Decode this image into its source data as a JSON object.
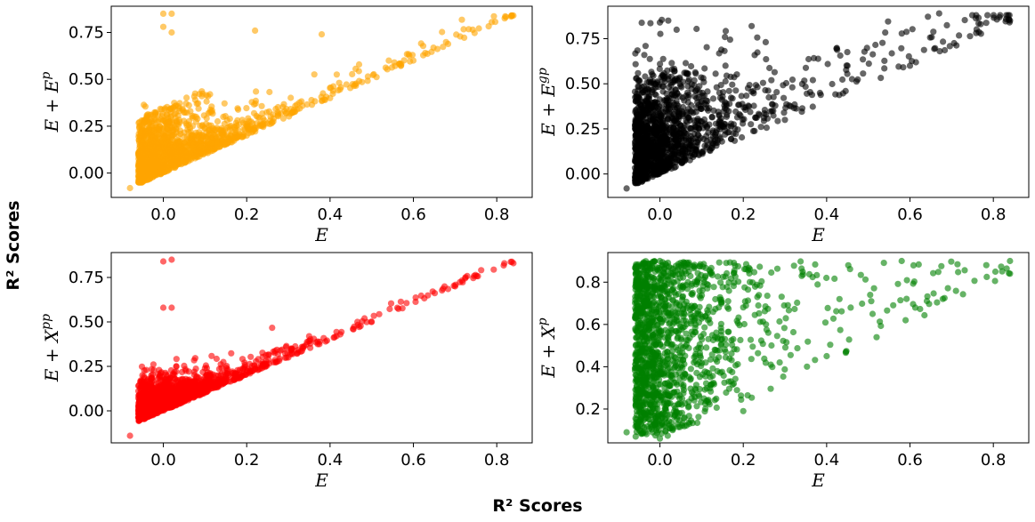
{
  "figure": {
    "supxlabel": "R² Scores",
    "supylabel": "R² Scores"
  },
  "chart_data": [
    {
      "type": "scatter",
      "name": "E vs E+E^p",
      "color": "#FFA500",
      "xlabel": "E",
      "ylabel_base": "E + E",
      "ylabel_sup": "p",
      "xlim": [
        -0.125,
        0.885
      ],
      "ylim": [
        -0.13,
        0.89
      ],
      "xticks": [
        0.0,
        0.2,
        0.4,
        0.6,
        0.8
      ],
      "xtick_labels": [
        "0.0",
        "0.2",
        "0.4",
        "0.6",
        "0.8"
      ],
      "yticks": [
        0.0,
        0.25,
        0.5,
        0.75
      ],
      "ytick_labels": [
        "0.00",
        "0.25",
        "0.50",
        "0.75"
      ],
      "pattern": "diagonal",
      "n_points": 1500,
      "seed": 11,
      "x_range": [
        -0.08,
        0.84
      ],
      "y_range": [
        -0.08,
        0.85
      ],
      "representative_points": [
        [
          -0.08,
          -0.08
        ],
        [
          0.0,
          0.85
        ],
        [
          0.02,
          0.85
        ],
        [
          0.0,
          0.78
        ],
        [
          0.02,
          0.75
        ],
        [
          0.22,
          0.76
        ],
        [
          0.38,
          0.74
        ],
        [
          0.84,
          0.84
        ],
        [
          0.6,
          0.6
        ],
        [
          0.4,
          0.4
        ],
        [
          0.2,
          0.2
        ]
      ]
    },
    {
      "type": "scatter",
      "name": "E vs E+E^gp",
      "color": "#000000",
      "xlabel": "E",
      "ylabel_base": "E + E",
      "ylabel_sup": "gp",
      "xlim": [
        -0.125,
        0.885
      ],
      "ylim": [
        -0.13,
        0.93
      ],
      "xticks": [
        0.0,
        0.2,
        0.4,
        0.6,
        0.8
      ],
      "xtick_labels": [
        "0.0",
        "0.2",
        "0.4",
        "0.6",
        "0.8"
      ],
      "yticks": [
        0.0,
        0.25,
        0.5,
        0.75
      ],
      "ytick_labels": [
        "0.00",
        "0.25",
        "0.50",
        "0.75"
      ],
      "pattern": "wide-diagonal",
      "n_points": 1500,
      "seed": 23,
      "x_range": [
        -0.08,
        0.84
      ],
      "y_range": [
        -0.08,
        0.89
      ],
      "representative_points": [
        [
          -0.08,
          -0.08
        ],
        [
          0.0,
          0.84
        ],
        [
          0.02,
          0.85
        ],
        [
          0.04,
          0.8
        ],
        [
          0.67,
          0.89
        ],
        [
          0.84,
          0.85
        ],
        [
          0.22,
          0.82
        ],
        [
          0.45,
          0.6
        ],
        [
          0.3,
          0.3
        ],
        [
          0.6,
          0.6
        ]
      ]
    },
    {
      "type": "scatter",
      "name": "E vs E+X^pp",
      "color": "#FF0000",
      "xlabel": "E",
      "ylabel_base": "E + X",
      "ylabel_sup": "pp",
      "xlim": [
        -0.125,
        0.885
      ],
      "ylim": [
        -0.18,
        0.89
      ],
      "xticks": [
        0.0,
        0.2,
        0.4,
        0.6,
        0.8
      ],
      "xtick_labels": [
        "0.0",
        "0.2",
        "0.4",
        "0.6",
        "0.8"
      ],
      "yticks": [
        0.0,
        0.25,
        0.5,
        0.75
      ],
      "ytick_labels": [
        "0.00",
        "0.25",
        "0.50",
        "0.75"
      ],
      "pattern": "tight-diagonal",
      "n_points": 1500,
      "seed": 37,
      "x_range": [
        -0.08,
        0.84
      ],
      "y_range": [
        -0.14,
        0.85
      ],
      "representative_points": [
        [
          -0.08,
          -0.14
        ],
        [
          0.0,
          0.84
        ],
        [
          0.02,
          0.85
        ],
        [
          0.0,
          0.58
        ],
        [
          0.02,
          0.58
        ],
        [
          0.84,
          0.83
        ],
        [
          0.7,
          0.7
        ],
        [
          0.5,
          0.5
        ],
        [
          0.3,
          0.3
        ]
      ]
    },
    {
      "type": "scatter",
      "name": "E vs E+X^p",
      "color": "#008000",
      "xlabel": "E",
      "ylabel_base": "E + X",
      "ylabel_sup": "p",
      "xlim": [
        -0.125,
        0.885
      ],
      "ylim": [
        0.04,
        0.94
      ],
      "xticks": [
        0.0,
        0.2,
        0.4,
        0.6,
        0.8
      ],
      "xtick_labels": [
        "0.0",
        "0.2",
        "0.4",
        "0.6",
        "0.8"
      ],
      "yticks": [
        0.2,
        0.4,
        0.6,
        0.8
      ],
      "ytick_labels": [
        "0.2",
        "0.4",
        "0.6",
        "0.8"
      ],
      "pattern": "wedge",
      "n_points": 1500,
      "seed": 53,
      "x_range": [
        -0.08,
        0.84
      ],
      "y_range": [
        0.06,
        0.9
      ],
      "representative_points": [
        [
          -0.08,
          0.09
        ],
        [
          0.0,
          0.9
        ],
        [
          0.58,
          0.9
        ],
        [
          0.84,
          0.9
        ],
        [
          0.84,
          0.84
        ],
        [
          0.2,
          0.19
        ],
        [
          0.4,
          0.45
        ],
        [
          0.0,
          0.06
        ]
      ]
    }
  ]
}
